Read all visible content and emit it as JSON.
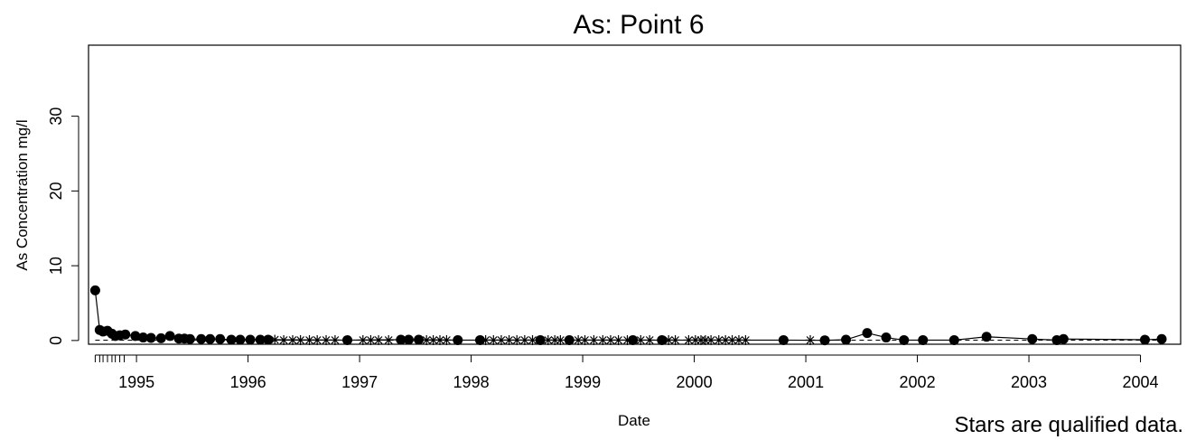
{
  "chart_data": {
    "type": "scatter",
    "title": "As:  Point 6",
    "xlabel": "Date",
    "ylabel": "As Concentration mg/l",
    "xlim": [
      1994.57,
      2004.36
    ],
    "ylim": [
      -0.5,
      39.5
    ],
    "x_ticks": [
      1995,
      1996,
      1997,
      1998,
      1999,
      2000,
      2001,
      2002,
      2003,
      2004
    ],
    "y_ticks": [
      0,
      10,
      20,
      30
    ],
    "grid": false,
    "minor_x_ticks": [
      1994.63,
      1994.67,
      1994.7,
      1994.74,
      1994.78,
      1994.81,
      1994.85,
      1994.89
    ],
    "reference_line": {
      "style": "dashed",
      "value": 0.05
    },
    "series": [
      {
        "marker": "filled-circle",
        "connected": true,
        "points": [
          [
            1994.63,
            6.7
          ],
          [
            1994.67,
            1.4
          ],
          [
            1994.7,
            1.2
          ],
          [
            1994.74,
            1.3
          ],
          [
            1994.78,
            0.9
          ],
          [
            1994.81,
            0.6
          ],
          [
            1994.85,
            0.7
          ],
          [
            1994.9,
            0.8
          ],
          [
            1994.99,
            0.6
          ],
          [
            1995.06,
            0.4
          ],
          [
            1995.13,
            0.35
          ],
          [
            1995.22,
            0.3
          ],
          [
            1995.3,
            0.6
          ],
          [
            1995.38,
            0.25
          ],
          [
            1995.43,
            0.25
          ],
          [
            1995.48,
            0.2
          ],
          [
            1995.58,
            0.2
          ],
          [
            1995.66,
            0.2
          ],
          [
            1995.75,
            0.2
          ],
          [
            1995.85,
            0.1
          ],
          [
            1995.93,
            0.1
          ],
          [
            1996.02,
            0.1
          ],
          [
            1996.11,
            0.1
          ],
          [
            1996.18,
            0.1
          ],
          [
            1996.89,
            0.05
          ],
          [
            1997.37,
            0.1
          ],
          [
            1997.44,
            0.1
          ],
          [
            1997.53,
            0.1
          ],
          [
            1997.88,
            0.05
          ],
          [
            1998.08,
            0.05
          ],
          [
            1998.62,
            0.05
          ],
          [
            1998.88,
            0.05
          ],
          [
            1999.45,
            0.05
          ],
          [
            1999.71,
            0.05
          ],
          [
            2000.8,
            0.05
          ],
          [
            2001.17,
            0.02
          ],
          [
            2001.36,
            0.1
          ],
          [
            2001.55,
            1.0
          ],
          [
            2001.72,
            0.4
          ],
          [
            2001.88,
            0.05
          ],
          [
            2002.05,
            0.05
          ],
          [
            2002.33,
            0.05
          ],
          [
            2002.62,
            0.5
          ],
          [
            2003.03,
            0.2
          ],
          [
            2003.25,
            0.05
          ],
          [
            2003.31,
            0.2
          ],
          [
            2004.04,
            0.1
          ],
          [
            2004.19,
            0.2
          ]
        ]
      },
      {
        "marker": "star",
        "qualified": true,
        "connected": false,
        "points": [
          [
            1996.24,
            0.1
          ],
          [
            1996.32,
            0.05
          ],
          [
            1996.4,
            0.05
          ],
          [
            1996.47,
            0.05
          ],
          [
            1996.55,
            0.05
          ],
          [
            1996.62,
            0.05
          ],
          [
            1996.7,
            0.05
          ],
          [
            1996.78,
            0.05
          ],
          [
            1997.03,
            0.05
          ],
          [
            1997.1,
            0.05
          ],
          [
            1997.17,
            0.05
          ],
          [
            1997.26,
            0.05
          ],
          [
            1997.6,
            0.05
          ],
          [
            1997.66,
            0.05
          ],
          [
            1997.72,
            0.05
          ],
          [
            1997.78,
            0.05
          ],
          [
            1998.13,
            0.05
          ],
          [
            1998.2,
            0.05
          ],
          [
            1998.27,
            0.05
          ],
          [
            1998.34,
            0.05
          ],
          [
            1998.41,
            0.05
          ],
          [
            1998.48,
            0.05
          ],
          [
            1998.55,
            0.05
          ],
          [
            1998.69,
            0.05
          ],
          [
            1998.75,
            0.05
          ],
          [
            1998.8,
            0.05
          ],
          [
            1998.96,
            0.05
          ],
          [
            1999.02,
            0.05
          ],
          [
            1999.1,
            0.05
          ],
          [
            1999.18,
            0.05
          ],
          [
            1999.25,
            0.05
          ],
          [
            1999.32,
            0.05
          ],
          [
            1999.4,
            0.05
          ],
          [
            1999.52,
            0.05
          ],
          [
            1999.6,
            0.05
          ],
          [
            1999.77,
            0.05
          ],
          [
            1999.83,
            0.05
          ],
          [
            1999.95,
            0.05
          ],
          [
            2000.01,
            0.05
          ],
          [
            2000.06,
            0.05
          ],
          [
            2000.1,
            0.05
          ],
          [
            2000.15,
            0.05
          ],
          [
            2000.22,
            0.05
          ],
          [
            2000.28,
            0.05
          ],
          [
            2000.34,
            0.05
          ],
          [
            2000.4,
            0.05
          ],
          [
            2000.46,
            0.05
          ],
          [
            2001.04,
            0.05
          ]
        ]
      }
    ],
    "annotation": "Stars are qualified data."
  }
}
